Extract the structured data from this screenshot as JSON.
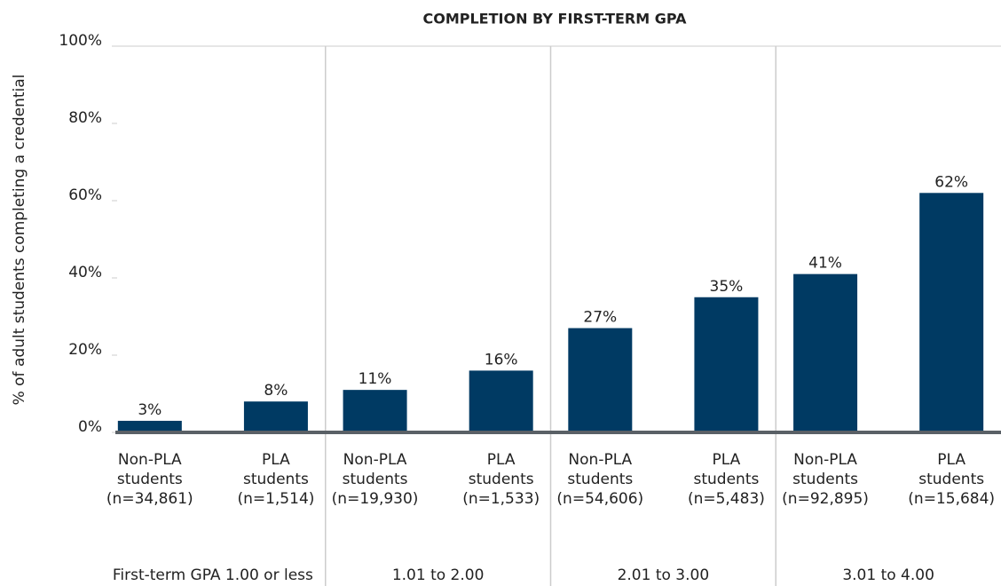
{
  "chart_data": {
    "type": "bar",
    "title": "COMPLETION BY FIRST-TERM GPA",
    "y_label": "% of adult students completing a credential",
    "categories": [
      [
        "Non-PLA",
        "students",
        "(n=34,861)"
      ],
      [
        "PLA",
        "students",
        "(n=1,514)"
      ],
      [
        "Non-PLA",
        "students",
        "(n=19,930)"
      ],
      [
        "PLA",
        "students",
        "(n=1,533)"
      ],
      [
        "Non-PLA",
        "students",
        "(n=54,606)"
      ],
      [
        "PLA",
        "students",
        "(n=5,483)"
      ],
      [
        "Non-PLA",
        "students",
        "(n=92,895)"
      ],
      [
        "PLA",
        "students",
        "(n=15,684)"
      ]
    ],
    "groups": [
      "First-term GPA 1.00 or less",
      "1.01 to 2.00",
      "2.01 to 3.00",
      "3.01 to 4.00"
    ],
    "values": [
      3,
      8,
      11,
      16,
      27,
      35,
      41,
      62
    ],
    "value_labels": [
      "3%",
      "8%",
      "11%",
      "16%",
      "27%",
      "35%",
      "41%",
      "62%"
    ],
    "color": "#003a63",
    "ylim": [
      0,
      100
    ],
    "yticks": [
      {
        "value": 0,
        "label": "0%"
      },
      {
        "value": 20,
        "label": "20%"
      },
      {
        "value": 40,
        "label": "40%"
      },
      {
        "value": 60,
        "label": "60%"
      },
      {
        "value": 80,
        "label": "80%"
      },
      {
        "value": 100,
        "label": "100%"
      }
    ]
  }
}
